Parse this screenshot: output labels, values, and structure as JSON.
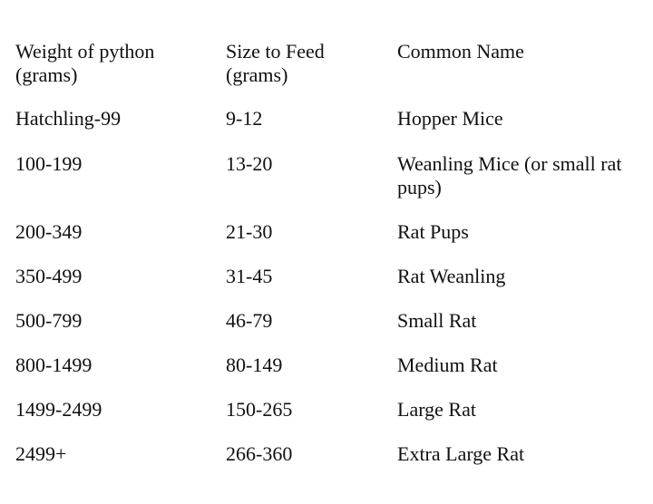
{
  "table": {
    "header": [
      "Weight of python (grams)",
      "Size to Feed (grams)",
      "Common Name"
    ],
    "rows": [
      [
        "Hatchling-99",
        "9-12",
        "Hopper Mice"
      ],
      [
        "100-199",
        "13-20",
        "Weanling Mice (or small rat pups)"
      ],
      [
        "200-349",
        "21-30",
        "Rat Pups"
      ],
      [
        "350-499",
        "31-45",
        "Rat Weanling"
      ],
      [
        "500-799",
        "46-79",
        "Small Rat"
      ],
      [
        "800-1499",
        "80-149",
        "Medium Rat"
      ],
      [
        "1499-2499",
        "150-265",
        "Large Rat"
      ],
      [
        "2499+",
        "266-360",
        "Extra Large Rat"
      ]
    ]
  }
}
